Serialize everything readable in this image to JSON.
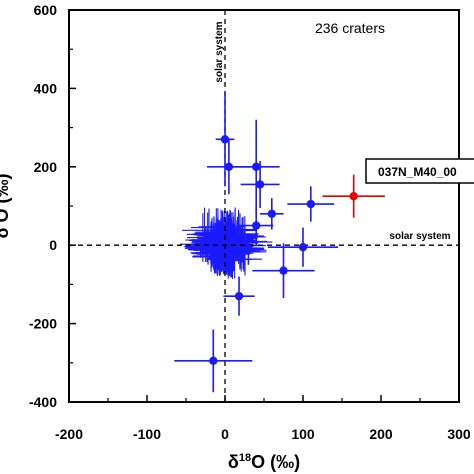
{
  "chart_data": {
    "type": "scatter",
    "title": "",
    "xlabel_pre": "δ",
    "xlabel_sup": "18",
    "xlabel_post": "O (‰)",
    "ylabel_visible": "δ O (‰)",
    "xlim": [
      -200,
      300
    ],
    "ylim": [
      -400,
      600
    ],
    "xticks": [
      -200,
      -100,
      0,
      100,
      200,
      300
    ],
    "yticks": [
      -400,
      -200,
      0,
      200,
      400,
      600
    ],
    "annotation_count": "236 craters",
    "annotation_solar_vertical": "solar system",
    "annotation_solar_horizontal": "solar system",
    "highlight_label": "037N_M40_00",
    "colors": {
      "blue": "#1a1aff",
      "red": "#e60000"
    },
    "blue_points": [
      {
        "x": 0,
        "y": 270,
        "ex": 12,
        "ey": 120
      },
      {
        "x": 5,
        "y": 200,
        "ex": 28,
        "ey": 70
      },
      {
        "x": 40,
        "y": 200,
        "ex": 30,
        "ey": 120
      },
      {
        "x": 45,
        "y": 155,
        "ex": 25,
        "ey": 60
      },
      {
        "x": 110,
        "y": 105,
        "ex": 30,
        "ey": 45
      },
      {
        "x": 60,
        "y": 80,
        "ex": 15,
        "ey": 40
      },
      {
        "x": 100,
        "y": -5,
        "ex": 45,
        "ey": 50
      },
      {
        "x": 75,
        "y": -65,
        "ex": 40,
        "ey": 70
      },
      {
        "x": -15,
        "y": -295,
        "ex": 50,
        "ey": 80
      },
      {
        "x": 18,
        "y": -130,
        "ex": 20,
        "ey": 50
      },
      {
        "x": 40,
        "y": 50,
        "ex": 22,
        "ey": 50
      },
      {
        "x": 30,
        "y": -10,
        "ex": 20,
        "ey": 40
      }
    ],
    "red_points": [
      {
        "x": 165,
        "y": 125,
        "ex": 40,
        "ey": 55
      }
    ]
  }
}
